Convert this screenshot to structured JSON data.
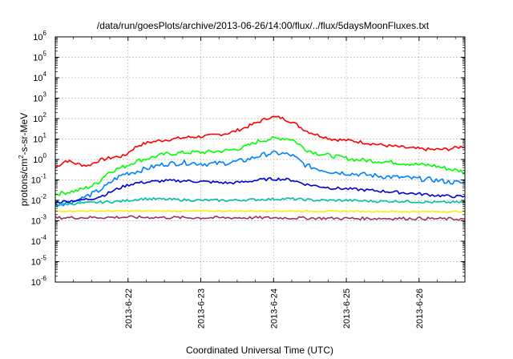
{
  "chart_data": {
    "type": "line",
    "title": "/data/run/goesPlots/archive/2013-06-26/14:00/flux/../flux/5daysMoonFluxes.txt",
    "xlabel": "Coordinated Universal Time (UTC)",
    "ylabel": {
      "base": "protons/cm",
      "sup": "2",
      "rest": "-s-sr-MeV"
    },
    "yscale": "log",
    "ylim": [
      1e-06,
      1000000.0
    ],
    "xlim": [
      0,
      5.63
    ],
    "x_origin_note": "x in days after 2013-06-21 00:00 UTC",
    "xticks": [
      {
        "x": 1,
        "label": "2013-6-22"
      },
      {
        "x": 2,
        "label": "2013-6-23"
      },
      {
        "x": 3,
        "label": "2013-6-24"
      },
      {
        "x": 4,
        "label": "2013-6-25"
      },
      {
        "x": 5,
        "label": "2013-6-26"
      }
    ],
    "yticks": [
      {
        "exp": -6,
        "label": "10",
        "sup": "-6"
      },
      {
        "exp": -5,
        "label": "10",
        "sup": "-5"
      },
      {
        "exp": -4,
        "label": "10",
        "sup": "-4"
      },
      {
        "exp": -3,
        "label": "10",
        "sup": "-3"
      },
      {
        "exp": -2,
        "label": "10",
        "sup": "-2"
      },
      {
        "exp": -1,
        "label": "10",
        "sup": "-1"
      },
      {
        "exp": 0,
        "label": "10",
        "sup": "0"
      },
      {
        "exp": 1,
        "label": "10",
        "sup": "1"
      },
      {
        "exp": 2,
        "label": "10",
        "sup": "2"
      },
      {
        "exp": 3,
        "label": "10",
        "sup": "3"
      },
      {
        "exp": 4,
        "label": "10",
        "sup": "4"
      },
      {
        "exp": 5,
        "label": "10",
        "sup": "5"
      },
      {
        "exp": 6,
        "label": "10",
        "sup": "6"
      }
    ],
    "grid": true,
    "legend": "none",
    "series": [
      {
        "color": "#ff0000",
        "noise": 0.08,
        "x": [
          0.0,
          0.15,
          0.3,
          0.45,
          0.6,
          0.8,
          0.95,
          1.05,
          1.15,
          1.3,
          1.5,
          1.8,
          2.1,
          2.4,
          2.6,
          2.8,
          2.95,
          3.1,
          3.25,
          3.45,
          3.6,
          3.8,
          4.1,
          4.5,
          4.9,
          5.2,
          5.4,
          5.63
        ],
        "y": [
          0.4,
          0.9,
          0.6,
          0.5,
          0.9,
          1.3,
          1.5,
          3.0,
          5.0,
          7.0,
          9.0,
          12.0,
          14.0,
          20.0,
          35.0,
          70.0,
          120.0,
          110.0,
          70.0,
          25.0,
          16.0,
          10.0,
          8.0,
          5.0,
          3.5,
          3.0,
          3.2,
          4.5
        ]
      },
      {
        "color": "#00ff00",
        "noise": 0.1,
        "x": [
          0.0,
          0.3,
          0.5,
          0.6,
          0.7,
          0.8,
          0.95,
          1.1,
          1.3,
          1.5,
          1.8,
          2.1,
          2.4,
          2.6,
          2.8,
          2.95,
          3.1,
          3.25,
          3.45,
          3.6,
          3.8,
          4.1,
          4.5,
          4.9,
          5.2,
          5.4,
          5.63
        ],
        "y": [
          0.02,
          0.03,
          0.05,
          0.08,
          0.2,
          0.3,
          0.45,
          0.8,
          1.2,
          1.8,
          2.2,
          2.3,
          2.8,
          4.0,
          8.0,
          10.0,
          11.0,
          10.0,
          3.0,
          2.0,
          1.5,
          1.0,
          0.8,
          0.6,
          0.5,
          0.35,
          0.25
        ]
      },
      {
        "color": "#0080ff",
        "noise": 0.12,
        "x": [
          0.0,
          0.3,
          0.5,
          0.6,
          0.7,
          0.8,
          0.95,
          1.1,
          1.3,
          1.5,
          1.8,
          2.1,
          2.4,
          2.6,
          2.8,
          2.95,
          3.1,
          3.25,
          3.45,
          3.6,
          3.8,
          4.1,
          4.5,
          4.9,
          5.2,
          5.4,
          5.63
        ],
        "y": [
          0.006,
          0.01,
          0.02,
          0.03,
          0.05,
          0.1,
          0.2,
          0.25,
          0.4,
          0.6,
          0.7,
          0.6,
          0.7,
          0.9,
          1.5,
          2.0,
          2.0,
          1.6,
          0.5,
          0.35,
          0.25,
          0.2,
          0.15,
          0.12,
          0.1,
          0.08,
          0.07
        ]
      },
      {
        "color": "#0000dd",
        "noise": 0.07,
        "x": [
          0.0,
          0.3,
          0.5,
          0.6,
          0.7,
          0.8,
          0.95,
          1.1,
          1.3,
          1.5,
          1.8,
          2.1,
          2.4,
          2.6,
          2.8,
          2.95,
          3.1,
          3.25,
          3.45,
          3.6,
          3.8,
          4.1,
          4.5,
          4.9,
          5.2,
          5.4,
          5.63
        ],
        "y": [
          0.008,
          0.01,
          0.012,
          0.015,
          0.02,
          0.03,
          0.05,
          0.07,
          0.08,
          0.09,
          0.09,
          0.08,
          0.07,
          0.08,
          0.1,
          0.11,
          0.11,
          0.1,
          0.06,
          0.05,
          0.04,
          0.035,
          0.028,
          0.022,
          0.018,
          0.016,
          0.015
        ]
      },
      {
        "color": "#00c0a0",
        "noise": 0.06,
        "x": [
          0.0,
          0.3,
          0.6,
          0.9,
          1.2,
          1.6,
          2.0,
          2.4,
          2.8,
          3.2,
          3.6,
          4.0,
          4.4,
          4.8,
          5.2,
          5.63
        ],
        "y": [
          0.006,
          0.007,
          0.008,
          0.009,
          0.012,
          0.011,
          0.01,
          0.01,
          0.011,
          0.012,
          0.01,
          0.01,
          0.009,
          0.009,
          0.008,
          0.008
        ]
      },
      {
        "color": "#ffee00",
        "noise": 0.03,
        "x": [
          0.0,
          1.0,
          2.0,
          3.0,
          4.0,
          5.0,
          5.63
        ],
        "y": [
          0.003,
          0.003,
          0.003,
          0.003,
          0.0029,
          0.0028,
          0.0028
        ]
      },
      {
        "color": "#993366",
        "noise": 0.07,
        "x": [
          0.0,
          1.0,
          2.0,
          3.0,
          4.0,
          5.0,
          5.63
        ],
        "y": [
          0.0014,
          0.0015,
          0.0014,
          0.0014,
          0.0013,
          0.0013,
          0.0012
        ]
      }
    ]
  }
}
